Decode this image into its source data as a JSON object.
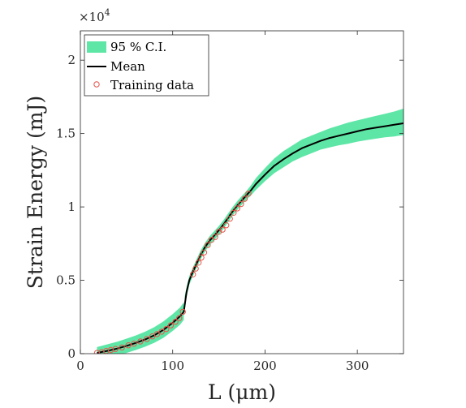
{
  "chart_data": {
    "type": "line",
    "xlabel": "L (μm)",
    "ylabel": "Strain Energy (mJ)",
    "y_exponent_label": "×10",
    "y_exponent_power": "4",
    "y_multiplier": 10000,
    "xlim": [
      0,
      350
    ],
    "ylim": [
      0,
      22000
    ],
    "x_ticks": [
      0,
      100,
      200,
      300
    ],
    "x_tick_labels": [
      "0",
      "100",
      "200",
      "300"
    ],
    "y_ticks": [
      0,
      5000,
      10000,
      15000,
      20000
    ],
    "y_tick_labels": [
      "0",
      "0.5",
      "1",
      "1.5",
      "2"
    ],
    "grid": false,
    "legend_position": "top-left",
    "colors": {
      "ci": "#5ee6a6",
      "mean": "#000000",
      "training": "#e8534a"
    },
    "legend": [
      "95 % C.I.",
      "Mean",
      "Training data"
    ],
    "series": [
      {
        "name": "Mean",
        "x": [
          18,
          30,
          40,
          50,
          60,
          70,
          80,
          90,
          100,
          108,
          112,
          113,
          115,
          118,
          122,
          126,
          130,
          135,
          140,
          145,
          150,
          155,
          160,
          165,
          170,
          175,
          180,
          185,
          190,
          200,
          210,
          220,
          230,
          240,
          250,
          260,
          270,
          280,
          290,
          300,
          310,
          320,
          330,
          340,
          350
        ],
        "y": [
          50,
          200,
          350,
          530,
          730,
          960,
          1250,
          1620,
          2100,
          2550,
          2850,
          3300,
          4200,
          5000,
          5600,
          6150,
          6700,
          7250,
          7700,
          8050,
          8400,
          8800,
          9250,
          9700,
          10100,
          10450,
          10800,
          11150,
          11550,
          12200,
          12800,
          13250,
          13650,
          14000,
          14250,
          14500,
          14700,
          14850,
          15000,
          15150,
          15300,
          15400,
          15500,
          15600,
          15700
        ]
      },
      {
        "name": "95 % C.I.",
        "x": [
          18,
          30,
          40,
          50,
          60,
          70,
          80,
          90,
          100,
          108,
          112,
          113,
          115,
          118,
          122,
          126,
          130,
          135,
          140,
          145,
          150,
          155,
          160,
          165,
          170,
          175,
          180,
          185,
          190,
          200,
          210,
          220,
          230,
          240,
          250,
          260,
          270,
          280,
          290,
          300,
          310,
          320,
          330,
          340,
          350
        ],
        "upper": [
          450,
          650,
          820,
          1020,
          1240,
          1490,
          1800,
          2200,
          2700,
          3150,
          3500,
          3900,
          4550,
          5300,
          5900,
          6450,
          7000,
          7550,
          8000,
          8350,
          8700,
          9100,
          9550,
          10000,
          10400,
          10750,
          11100,
          11500,
          11950,
          12650,
          13300,
          13800,
          14200,
          14600,
          14850,
          15100,
          15350,
          15550,
          15750,
          15900,
          16050,
          16200,
          16350,
          16500,
          16700
        ],
        "lower": [
          -300,
          -200,
          -100,
          50,
          250,
          470,
          740,
          1080,
          1550,
          1980,
          2300,
          2900,
          3850,
          4700,
          5300,
          5850,
          6400,
          6950,
          7400,
          7750,
          8100,
          8500,
          8950,
          9400,
          9800,
          10150,
          10500,
          10800,
          11150,
          11750,
          12300,
          12700,
          13100,
          13400,
          13650,
          13900,
          14050,
          14200,
          14300,
          14450,
          14550,
          14650,
          14750,
          14800,
          14900
        ]
      },
      {
        "name": "Training data",
        "x": [
          18,
          23,
          28,
          33,
          38,
          45,
          52,
          58,
          65,
          72,
          78,
          83,
          88,
          93,
          98,
          103,
          107,
          111,
          122,
          125,
          128,
          131,
          134,
          138,
          142,
          146,
          150,
          154,
          158,
          162,
          166,
          170,
          174,
          178,
          182
        ],
        "y": [
          50,
          100,
          180,
          250,
          320,
          420,
          570,
          680,
          830,
          1000,
          1180,
          1330,
          1500,
          1680,
          1930,
          2180,
          2420,
          2850,
          5400,
          5800,
          6200,
          6550,
          6900,
          7400,
          7750,
          7950,
          8300,
          8450,
          8750,
          9200,
          9600,
          9900,
          10200,
          10550,
          10900
        ]
      }
    ]
  }
}
